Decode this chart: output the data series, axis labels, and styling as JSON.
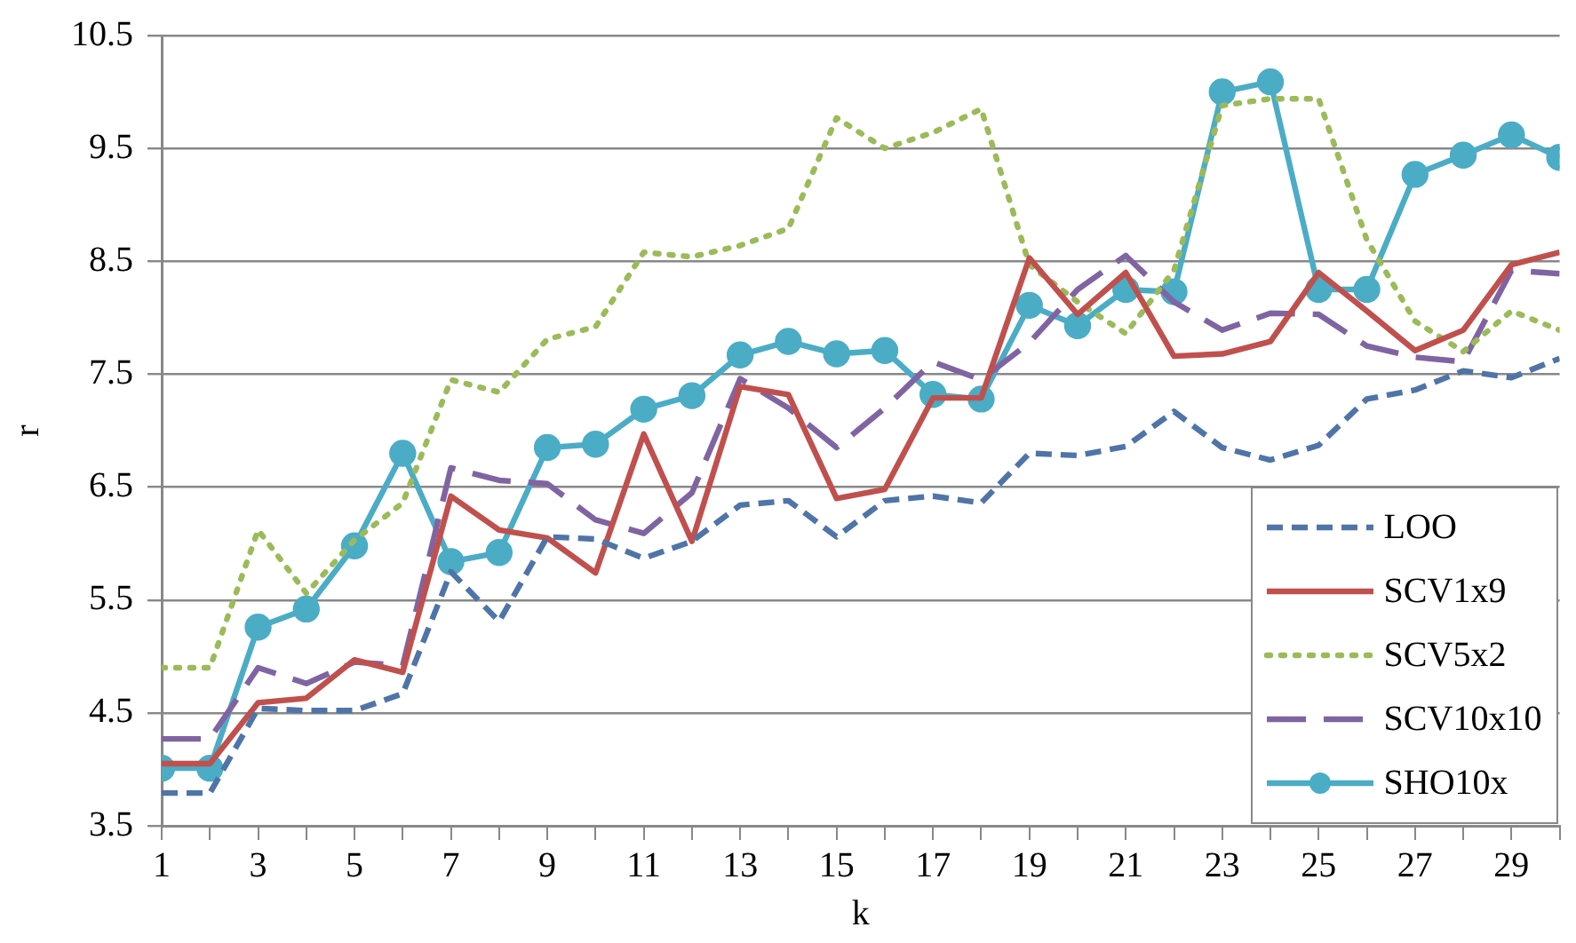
{
  "chart_data": {
    "type": "line",
    "xlabel": "k",
    "ylabel": "r",
    "x": [
      1,
      2,
      3,
      4,
      5,
      6,
      7,
      8,
      9,
      10,
      11,
      12,
      13,
      14,
      15,
      16,
      17,
      18,
      19,
      20,
      21,
      22,
      23,
      24,
      25,
      26,
      27,
      28,
      29,
      30
    ],
    "xlim": [
      1,
      30
    ],
    "xticks": [
      1,
      {
        "value": 2,
        "label": null
      },
      3,
      {
        "value": 4,
        "label": null
      },
      5,
      {
        "value": 6,
        "label": null
      },
      7,
      {
        "value": 8,
        "label": null
      },
      9,
      {
        "value": 10,
        "label": null
      },
      11,
      {
        "value": 12,
        "label": null
      },
      13,
      {
        "value": 14,
        "label": null
      },
      15,
      {
        "value": 16,
        "label": null
      },
      17,
      {
        "value": 18,
        "label": null
      },
      19,
      {
        "value": 20,
        "label": null
      },
      21,
      {
        "value": 22,
        "label": null
      },
      23,
      {
        "value": 24,
        "label": null
      },
      25,
      {
        "value": 26,
        "label": null
      },
      27,
      {
        "value": 28,
        "label": null
      },
      29,
      {
        "value": 30,
        "label": null
      }
    ],
    "ylim": [
      3.5,
      10.5
    ],
    "yticks": [
      3.5,
      4.5,
      5.5,
      6.5,
      7.5,
      8.5,
      9.5,
      10.5
    ],
    "grid": "y",
    "legend": "bottom right",
    "series": [
      {
        "name": "LOO",
        "color": "#4f74a8",
        "line_style": "dashed",
        "marker": "none",
        "values": [
          3.79,
          3.79,
          4.54,
          4.52,
          4.52,
          4.67,
          5.75,
          5.31,
          6.06,
          6.04,
          5.87,
          6.02,
          6.34,
          6.38,
          6.06,
          6.38,
          6.42,
          6.36,
          6.8,
          6.78,
          6.86,
          7.17,
          6.85,
          6.74,
          6.87,
          7.28,
          7.36,
          7.53,
          7.47,
          7.64
        ]
      },
      {
        "name": "SCV1x9",
        "color": "#c0504d",
        "line_style": "solid",
        "marker": "none",
        "values": [
          4.05,
          4.05,
          4.59,
          4.63,
          4.97,
          4.86,
          6.42,
          6.12,
          6.05,
          5.74,
          6.97,
          6.02,
          7.39,
          7.32,
          6.4,
          6.48,
          7.29,
          7.29,
          8.53,
          8.03,
          8.4,
          7.66,
          7.68,
          7.79,
          8.4,
          8.06,
          7.71,
          7.89,
          8.47,
          8.58
        ]
      },
      {
        "name": "SCV5x2",
        "color": "#9bbb59",
        "line_style": "dotted",
        "marker": "none",
        "values": [
          4.9,
          4.9,
          6.12,
          5.56,
          6.03,
          6.36,
          7.45,
          7.34,
          7.81,
          7.92,
          8.58,
          8.54,
          8.64,
          8.79,
          9.77,
          9.5,
          9.64,
          9.85,
          8.47,
          8.14,
          7.86,
          8.42,
          9.88,
          9.94,
          9.94,
          8.69,
          7.97,
          7.7,
          8.06,
          7.89
        ]
      },
      {
        "name": "SCV10x10",
        "color": "#8064a2",
        "line_style": "dashed",
        "marker": "none",
        "values": [
          4.27,
          4.27,
          4.9,
          4.76,
          4.95,
          4.92,
          6.67,
          6.56,
          6.53,
          6.21,
          6.09,
          6.45,
          7.46,
          7.2,
          6.85,
          7.2,
          7.61,
          7.45,
          7.78,
          8.25,
          8.55,
          8.14,
          7.89,
          8.04,
          8.03,
          7.75,
          7.65,
          7.61,
          8.42,
          8.39
        ]
      },
      {
        "name": "SHO10x",
        "color": "#4bacc6",
        "line_style": "solid",
        "marker": "circle",
        "values": [
          4.01,
          4.01,
          5.26,
          5.42,
          5.98,
          6.8,
          5.84,
          5.92,
          6.85,
          6.88,
          7.19,
          7.31,
          7.67,
          7.79,
          7.68,
          7.71,
          7.32,
          7.28,
          8.11,
          7.93,
          8.25,
          8.23,
          10.0,
          10.09,
          8.25,
          8.25,
          9.27,
          9.44,
          9.62,
          9.42
        ]
      }
    ]
  }
}
